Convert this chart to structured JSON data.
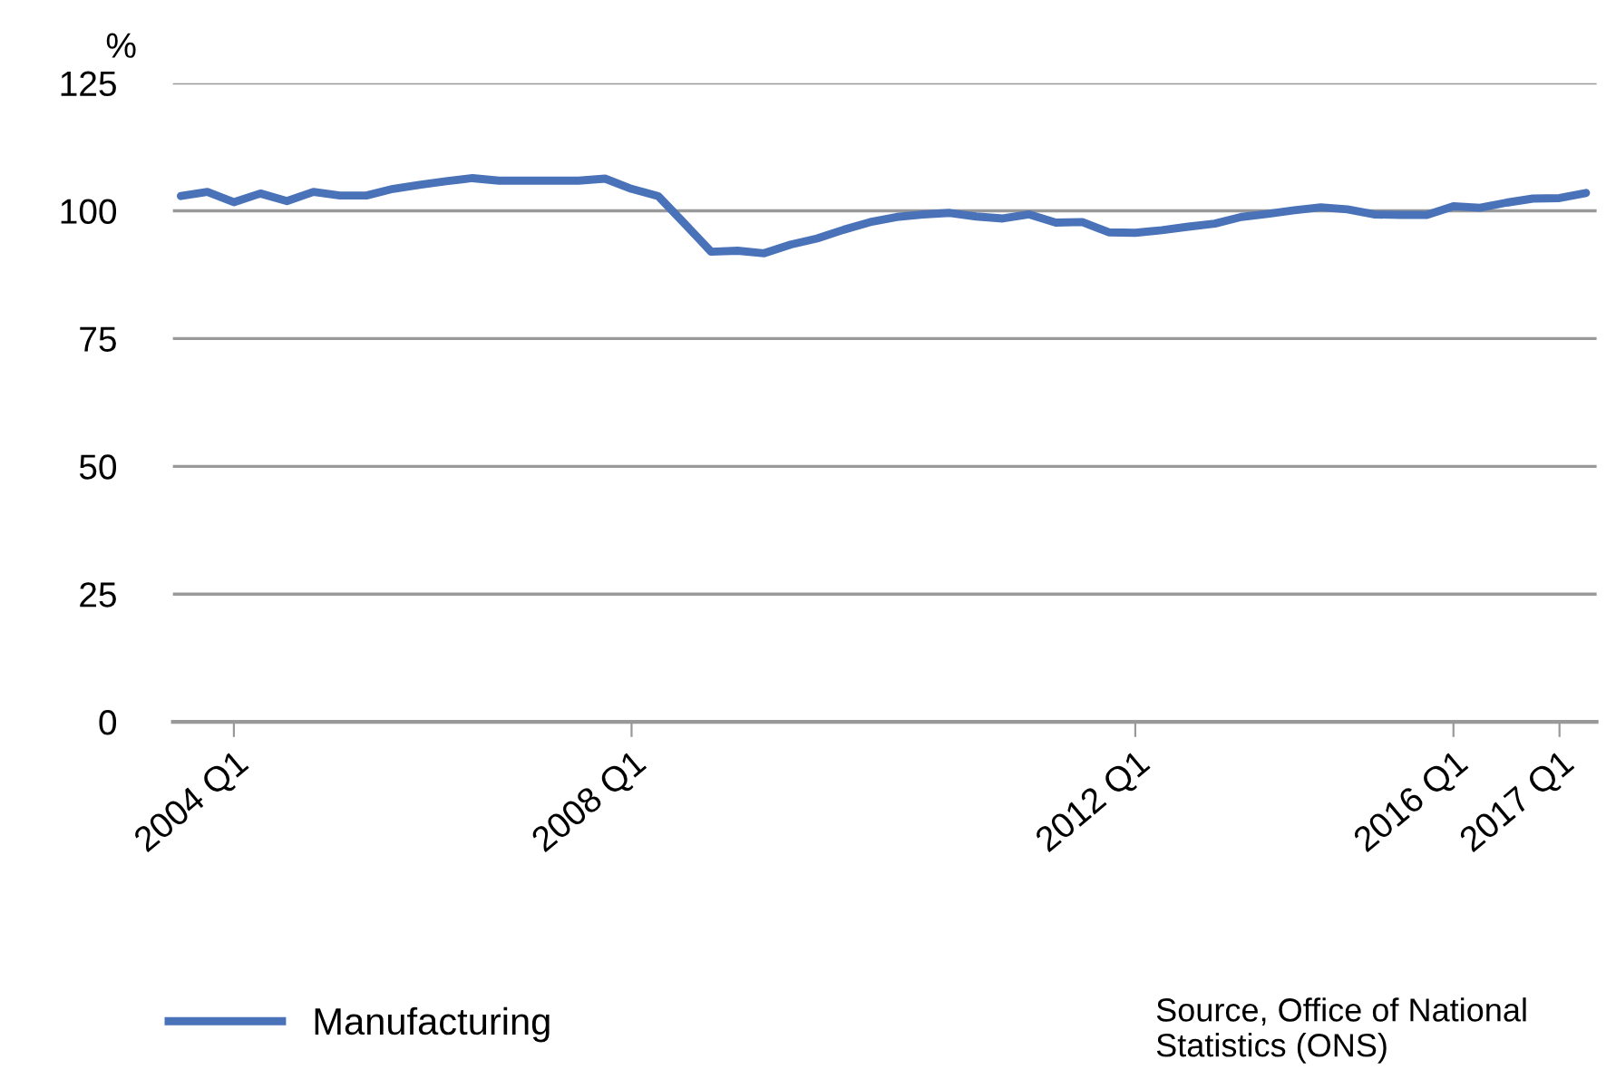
{
  "chart_data": {
    "type": "line",
    "ylabel": "%",
    "categories": [
      null,
      null,
      "2004 Q1",
      null,
      null,
      null,
      null,
      null,
      null,
      null,
      null,
      null,
      null,
      null,
      null,
      null,
      null,
      "2008 Q1",
      null,
      null,
      null,
      null,
      null,
      null,
      null,
      null,
      null,
      null,
      null,
      null,
      null,
      null,
      null,
      null,
      null,
      null,
      "2012 Q1",
      null,
      null,
      null,
      null,
      null,
      null,
      null,
      null,
      null,
      null,
      null,
      "2016 Q1",
      null,
      null,
      null,
      "2017 Q1",
      null
    ],
    "series": [
      {
        "name": "Manufacturing",
        "color": "#4a72b8",
        "values": [
          102.9,
          103.7,
          101.7,
          103.4,
          101.9,
          103.7,
          103.0,
          103.0,
          104.3,
          105.1,
          105.8,
          106.4,
          105.9,
          105.9,
          105.9,
          105.9,
          106.3,
          104.3,
          102.9,
          97.5,
          92.0,
          92.2,
          91.7,
          93.4,
          94.6,
          96.3,
          97.8,
          98.8,
          99.3,
          99.6,
          98.9,
          98.5,
          99.3,
          97.7,
          97.8,
          95.8,
          95.7,
          96.2,
          96.9,
          97.5,
          98.8,
          99.4,
          100.1,
          100.7,
          100.3,
          99.3,
          99.2,
          99.2,
          100.9,
          100.6,
          101.6,
          102.4,
          102.5,
          103.5
        ]
      }
    ],
    "ylim": [
      0,
      125
    ],
    "yticks": [
      0,
      25,
      50,
      75,
      100,
      125
    ],
    "grid": "y",
    "legend": "bottom left",
    "marker": "none",
    "line_style": "solid",
    "annotations": [
      "Source, Office of National Statistics (ONS)"
    ]
  }
}
